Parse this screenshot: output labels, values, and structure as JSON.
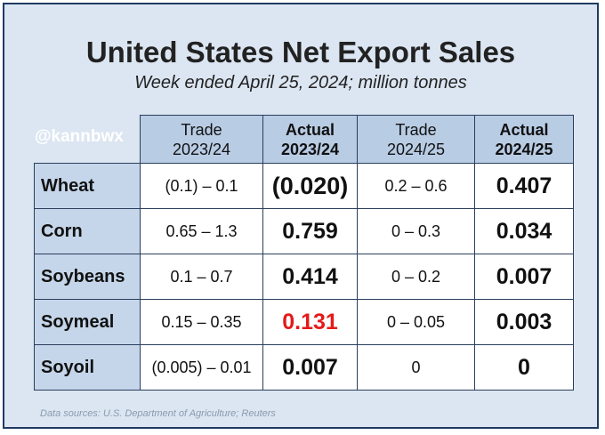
{
  "title": "United States Net Export Sales",
  "subtitle": "Week ended April 25, 2024; million tonnes",
  "handle": "@kannbwx",
  "headers": [
    {
      "line1": "Trade",
      "line2": "2023/24"
    },
    {
      "line1": "Actual",
      "line2": "2023/24"
    },
    {
      "line1": "Trade",
      "line2": "2024/25"
    },
    {
      "line1": "Actual",
      "line2": "2024/25"
    }
  ],
  "rows": [
    {
      "label": "Wheat",
      "trade_2324": "(0.1) – 0.1",
      "actual_2324": "(0.020)",
      "trade_2425": "0.2 – 0.6",
      "actual_2425": "0.407"
    },
    {
      "label": "Corn",
      "trade_2324": "0.65 – 1.3",
      "actual_2324": "0.759",
      "trade_2425": "0 – 0.3",
      "actual_2425": "0.034"
    },
    {
      "label": "Soybeans",
      "trade_2324": "0.1 – 0.7",
      "actual_2324": "0.414",
      "trade_2425": "0 – 0.2",
      "actual_2425": "0.007"
    },
    {
      "label": "Soymeal",
      "trade_2324": "0.15 – 0.35",
      "actual_2324": "0.131",
      "trade_2425": "0 – 0.05",
      "actual_2425": "0.003"
    },
    {
      "label": "Soyoil",
      "trade_2324": "(0.005) – 0.01",
      "actual_2324": "0.007",
      "trade_2425": "0",
      "actual_2425": "0"
    }
  ],
  "highlight_color": "#e41a1a",
  "source": "Data sources: U.S. Department of Agriculture; Reuters"
}
